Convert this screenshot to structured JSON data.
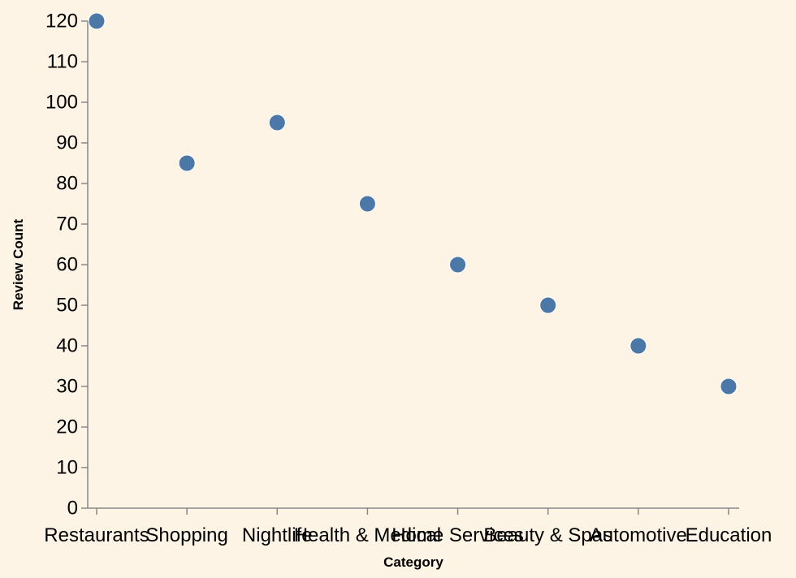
{
  "chart_data": {
    "type": "scatter",
    "title": "",
    "xlabel": "Category",
    "ylabel": "Review Count",
    "categories": [
      "Restaurants",
      "Shopping",
      "Nightlife",
      "Health & Medical",
      "Home Services",
      "Beauty & Spas",
      "Automotive",
      "Education"
    ],
    "values": [
      120,
      85,
      95,
      75,
      60,
      50,
      40,
      30
    ],
    "ylim": [
      0,
      120
    ],
    "yticks": [
      0,
      10,
      20,
      30,
      40,
      50,
      60,
      70,
      80,
      90,
      100,
      110,
      120
    ],
    "grid": false,
    "point_color": "#4c78a8",
    "background_color": "#fdf4e5"
  }
}
